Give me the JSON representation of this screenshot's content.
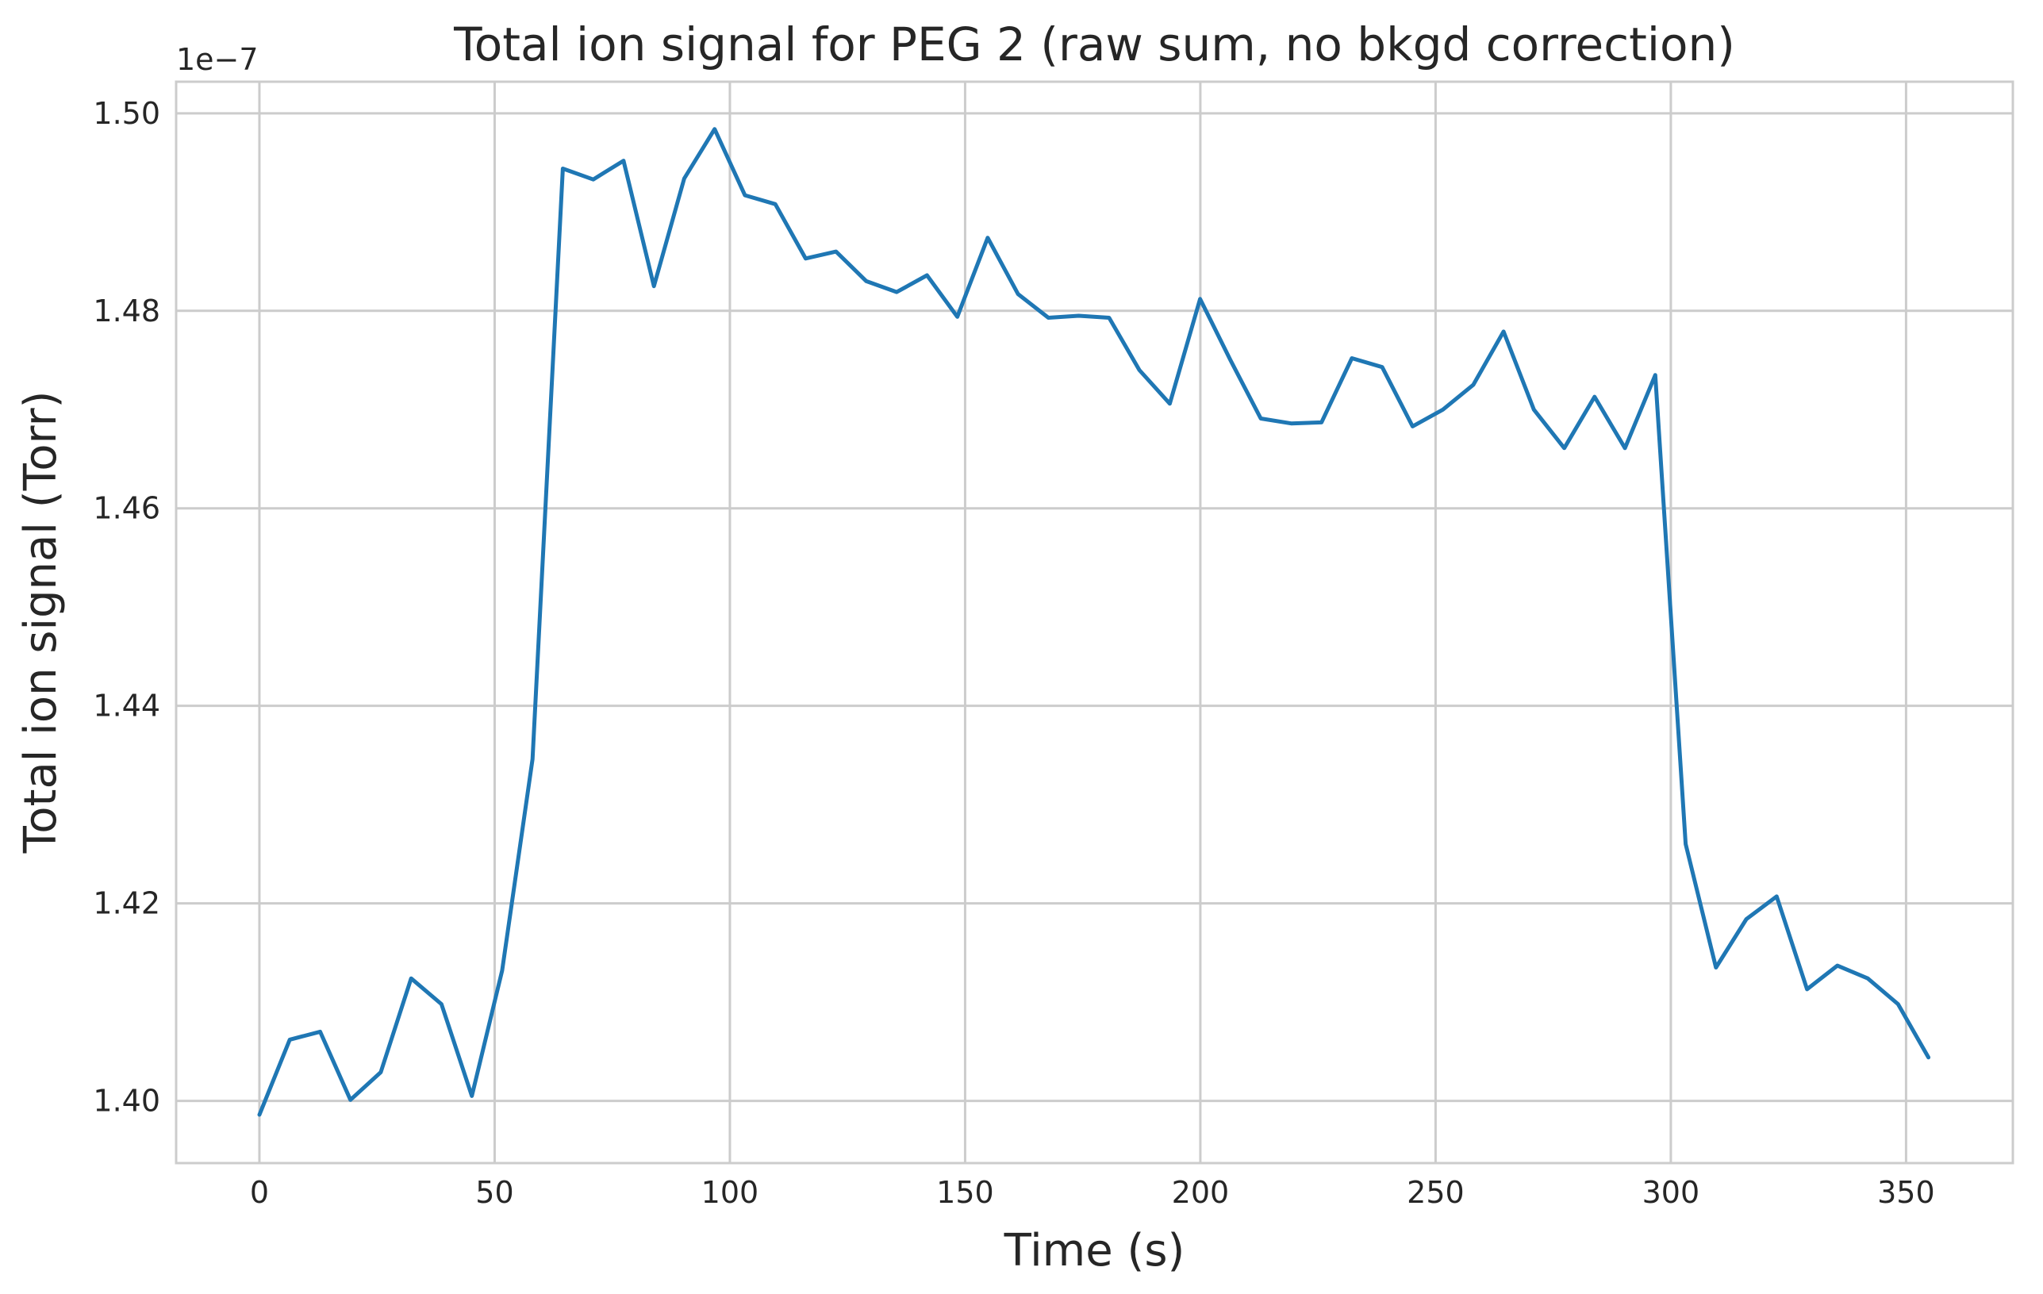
{
  "chart_data": {
    "type": "line",
    "title": "Total ion signal for PEG 2 (raw sum, no bkgd correction)",
    "xlabel": "Time (s)",
    "ylabel": "Total ion signal (Torr)",
    "y_offset_label": "1e−7",
    "xlim": [
      -17.7,
      372.7
    ],
    "ylim": [
      1.3937,
      1.5032
    ],
    "x_ticks": [
      0,
      50,
      100,
      150,
      200,
      250,
      300,
      350
    ],
    "x_tick_labels": [
      "0",
      "50",
      "100",
      "150",
      "200",
      "250",
      "300",
      "350"
    ],
    "y_ticks": [
      1.4,
      1.42,
      1.44,
      1.46,
      1.48,
      1.5
    ],
    "y_tick_labels": [
      "1.40",
      "1.42",
      "1.44",
      "1.46",
      "1.48",
      "1.50"
    ],
    "grid": true,
    "series": [
      {
        "color": "#1f77b4",
        "x": [
          0,
          6.45,
          12.9,
          19.35,
          25.8,
          32.25,
          38.7,
          45.15,
          51.6,
          58.05,
          64.5,
          70.95,
          77.4,
          83.85,
          90.3,
          96.75,
          103.2,
          109.65,
          116.1,
          122.55,
          129.0,
          135.45,
          141.9,
          148.35,
          154.8,
          161.25,
          167.7,
          174.15,
          180.6,
          187.05,
          193.5,
          199.95,
          206.4,
          212.85,
          219.3,
          225.75,
          232.2,
          238.65,
          245.1,
          251.55,
          258.0,
          264.45,
          270.9,
          277.35,
          283.8,
          290.25,
          296.7,
          303.15,
          309.6,
          316.05,
          322.5,
          328.95,
          335.4,
          341.85,
          348.3,
          354.75
        ],
        "values": [
          1.3986,
          1.4062,
          1.407,
          1.4001,
          1.4029,
          1.4124,
          1.4098,
          1.4005,
          1.4132,
          1.4346,
          1.4944,
          1.4933,
          1.4952,
          1.4825,
          1.4934,
          1.4984,
          1.4917,
          1.4908,
          1.4853,
          1.486,
          1.483,
          1.4819,
          1.4836,
          1.4794,
          1.4874,
          1.4817,
          1.4793,
          1.4795,
          1.4793,
          1.474,
          1.4706,
          1.4812,
          1.475,
          1.4691,
          1.4686,
          1.4687,
          1.4752,
          1.4743,
          1.4683,
          1.47,
          1.4725,
          1.4779,
          1.47,
          1.4661,
          1.4713,
          1.4661,
          1.4735,
          1.426,
          1.4135,
          1.4184,
          1.4207,
          1.4113,
          1.4137,
          1.4124,
          1.4098,
          1.4044
        ]
      }
    ]
  }
}
